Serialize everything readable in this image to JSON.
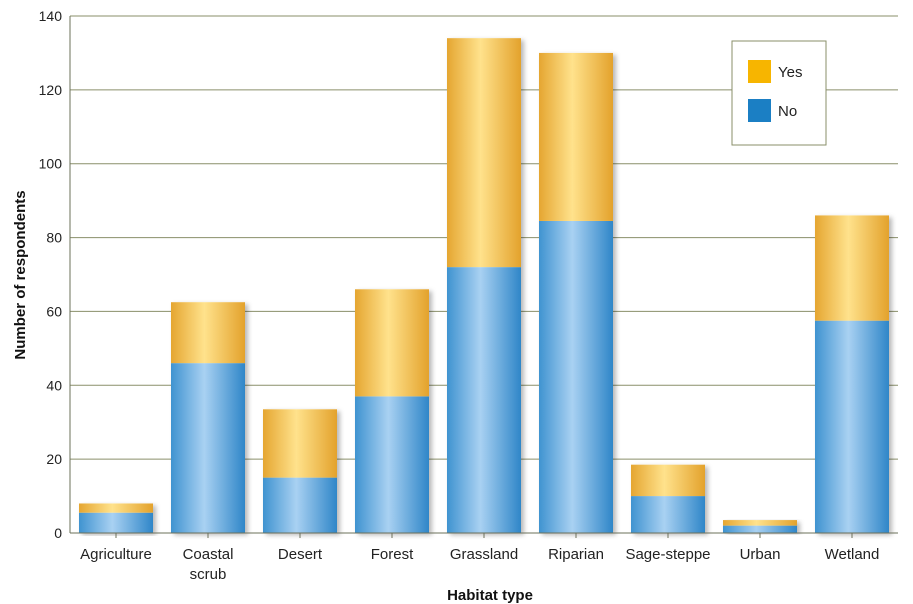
{
  "chart_data": {
    "type": "bar",
    "stacked": true,
    "categories": [
      [
        "Agriculture"
      ],
      [
        "Coastal",
        "scrub"
      ],
      [
        "Desert"
      ],
      [
        "Forest"
      ],
      [
        "Grassland"
      ],
      [
        "Riparian"
      ],
      [
        "Sage-steppe"
      ],
      [
        "Urban"
      ],
      [
        "Wetland"
      ]
    ],
    "series": [
      {
        "name": "No",
        "values": [
          5.5,
          46,
          15,
          37,
          72,
          84.5,
          10,
          2,
          57.5
        ]
      },
      {
        "name": "Yes",
        "values": [
          2.5,
          16.5,
          18.5,
          29,
          62,
          45.5,
          8.5,
          1.5,
          28.5
        ]
      }
    ],
    "xlabel": "Habitat type",
    "ylabel": "Number of respondents",
    "ylim": [
      0,
      140
    ],
    "yticks": [
      0,
      20,
      40,
      60,
      80,
      100,
      120,
      140
    ],
    "grid": true,
    "legend_position": "top-right",
    "legend_order": [
      "Yes",
      "No"
    ],
    "colors": {
      "No": "#1b7fc4",
      "Yes": "#f7b500",
      "grid": "#8a8f6a",
      "axis": "#6b705a"
    }
  }
}
